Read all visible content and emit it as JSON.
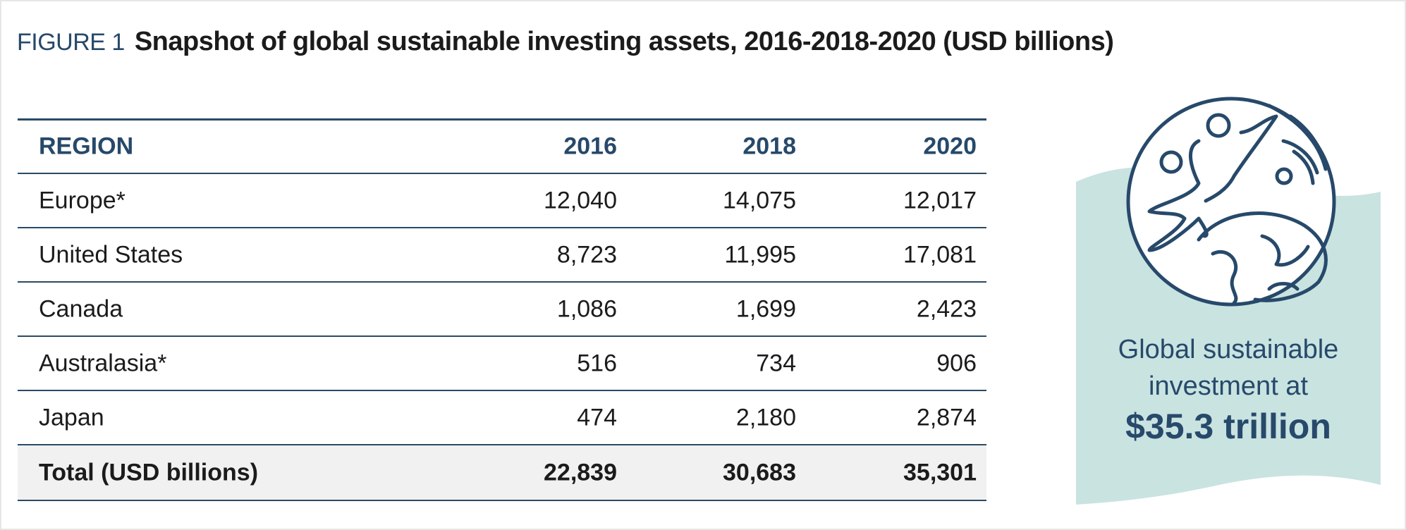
{
  "figure": {
    "label": "FIGURE 1",
    "title": "Snapshot of global sustainable investing assets, 2016-2018-2020 (USD billions)"
  },
  "table": {
    "header": [
      "REGION",
      "2016",
      "2018",
      "2020"
    ],
    "rows": [
      [
        "Europe*",
        "12,040",
        "14,075",
        "12,017"
      ],
      [
        "United States",
        "8,723",
        "11,995",
        "17,081"
      ],
      [
        "Canada",
        "1,086",
        "1,699",
        "2,423"
      ],
      [
        "Australasia*",
        "516",
        "734",
        "906"
      ],
      [
        "Japan",
        "474",
        "2,180",
        "2,874"
      ]
    ],
    "total": [
      "Total (USD billions)",
      "22,839",
      "30,683",
      "35,301"
    ]
  },
  "callout": {
    "text": "Global sustainable investment at",
    "highlight": "$35.3 trillion"
  }
}
